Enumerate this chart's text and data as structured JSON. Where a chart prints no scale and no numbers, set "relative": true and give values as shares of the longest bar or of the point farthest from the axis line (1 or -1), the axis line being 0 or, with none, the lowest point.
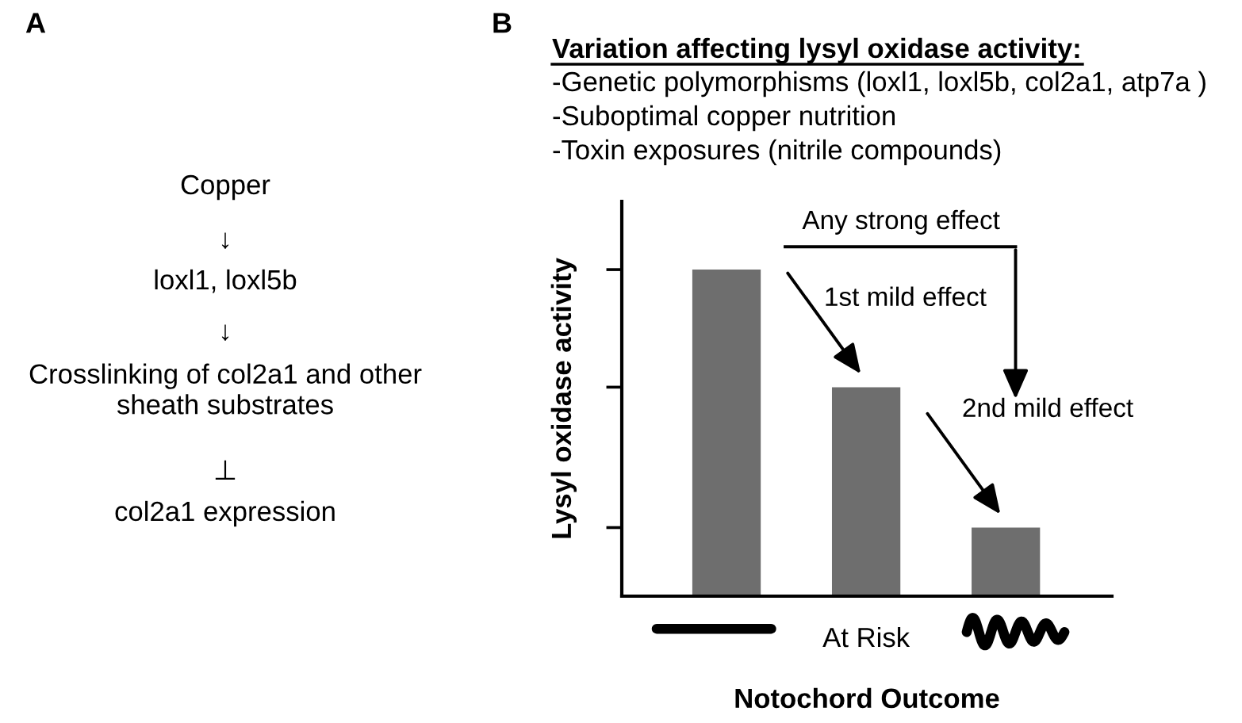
{
  "chart_data": [
    {
      "type": "other",
      "title": "A",
      "annotations": [
        "Copper",
        "↓",
        "loxl1, loxl5b",
        "↓",
        "Crosslinking of col2a1 and other\nsheath substrates",
        "⊥",
        "col2a1 expression"
      ]
    },
    {
      "type": "bar",
      "title": "B",
      "subtitle": "Variation affecting lysyl oxidase activity:",
      "xlabel": "Notochord Outcome",
      "ylabel": "Lysyl oxidase activity",
      "categories": [
        null,
        "At Risk",
        null
      ],
      "values": [
        1,
        0.64,
        0.21
      ],
      "color": "#6e6e6e",
      "relative": true,
      "annotations": [
        "-Genetic polymorphisms (loxl1, loxl5b, col2a1, atp7a )",
        "-Suboptimal copper nutrition",
        "-Toxin exposures (nitrile compounds)",
        "Any strong effect",
        "1st mild effect",
        "2nd mild effect"
      ]
    }
  ]
}
